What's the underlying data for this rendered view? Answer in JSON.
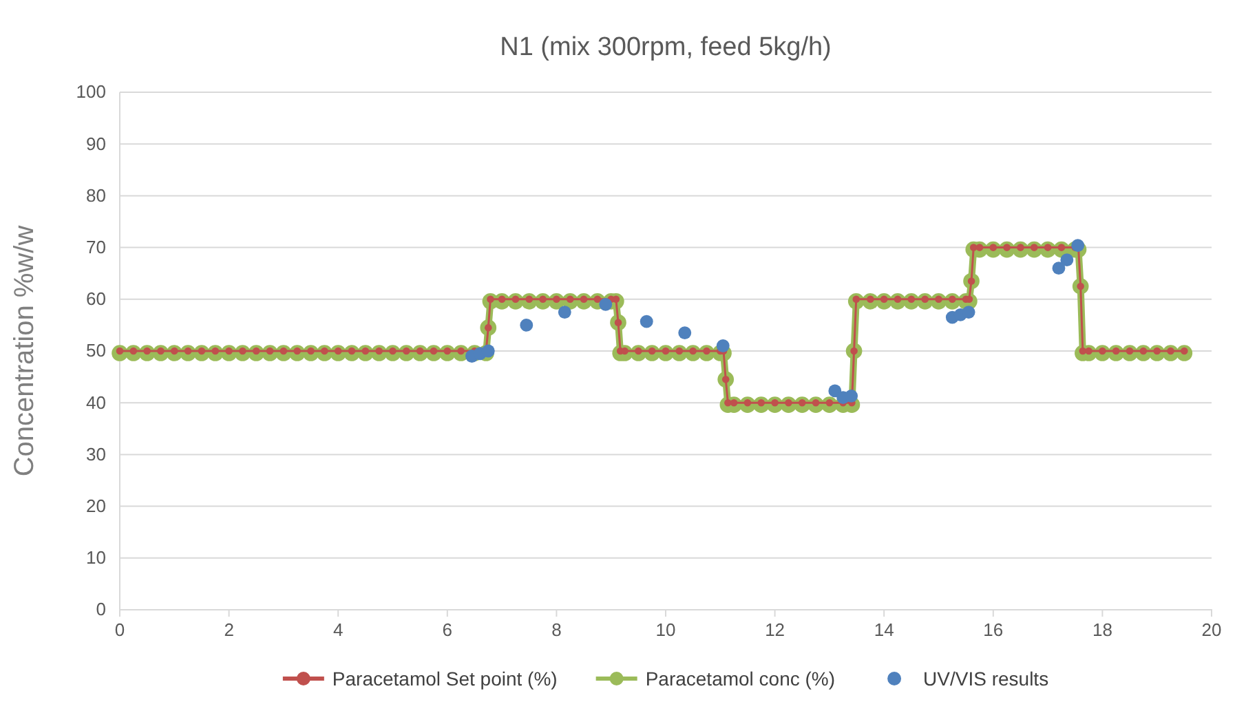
{
  "chart_data": {
    "type": "line",
    "title": "N1 (mix 300rpm, feed 5kg/h)",
    "ylabel": "Concentration %w/w",
    "x": [
      0,
      0.25,
      0.5,
      0.75,
      1,
      1.25,
      1.5,
      1.75,
      2,
      2.25,
      2.5,
      2.75,
      3,
      3.25,
      3.5,
      3.75,
      4,
      4.25,
      4.5,
      4.75,
      5,
      5.25,
      5.5,
      5.75,
      6,
      6.25,
      6.5,
      6.71,
      6.75,
      6.79,
      7,
      7.25,
      7.5,
      7.75,
      8,
      8.25,
      8.5,
      8.75,
      9,
      9.09,
      9.13,
      9.17,
      9.25,
      9.5,
      9.75,
      10,
      10.25,
      10.5,
      10.75,
      11,
      11.06,
      11.1,
      11.14,
      11.25,
      11.5,
      11.75,
      12,
      12.25,
      12.5,
      12.75,
      13,
      13.25,
      13.41,
      13.45,
      13.49,
      13.75,
      14,
      14.25,
      14.5,
      14.75,
      15,
      15.25,
      15.5,
      15.56,
      15.6,
      15.64,
      15.75,
      16,
      16.25,
      16.5,
      16.75,
      17,
      17.25,
      17.5,
      17.56,
      17.6,
      17.64,
      17.75,
      18,
      18.25,
      18.5,
      18.75,
      19,
      19.25,
      19.5
    ],
    "series": [
      {
        "name": "Paracetamol Set point (%)",
        "color": "#c0504d",
        "values": [
          50,
          50,
          50,
          50,
          50,
          50,
          50,
          50,
          50,
          50,
          50,
          50,
          50,
          50,
          50,
          50,
          50,
          50,
          50,
          50,
          50,
          50,
          50,
          50,
          50,
          50,
          50,
          50,
          54.5,
          60,
          60,
          60,
          60,
          60,
          60,
          60,
          60,
          60,
          60,
          60,
          55.5,
          50,
          50,
          50,
          50,
          50,
          50,
          50,
          50,
          50,
          50,
          44.5,
          40,
          40,
          40,
          40,
          40,
          40,
          40,
          40,
          40,
          40,
          40,
          50,
          60,
          60,
          60,
          60,
          60,
          60,
          60,
          60,
          60,
          60,
          63.5,
          70,
          70,
          70,
          70,
          70,
          70,
          70,
          70,
          70,
          70,
          62.5,
          50,
          50,
          50,
          50,
          50,
          50,
          50,
          50,
          50
        ]
      },
      {
        "name": "Paracetamol conc (%)",
        "color": "#9bbb59",
        "values": [
          49.6,
          49.6,
          49.6,
          49.6,
          49.6,
          49.6,
          49.6,
          49.6,
          49.6,
          49.6,
          49.6,
          49.6,
          49.6,
          49.6,
          49.6,
          49.6,
          49.6,
          49.6,
          49.6,
          49.6,
          49.6,
          49.6,
          49.6,
          49.6,
          49.6,
          49.6,
          49.6,
          49.6,
          54.5,
          59.6,
          59.6,
          59.6,
          59.6,
          59.6,
          59.6,
          59.6,
          59.6,
          59.6,
          59.6,
          59.6,
          55.5,
          49.6,
          49.6,
          49.6,
          49.6,
          49.6,
          49.6,
          49.6,
          49.6,
          49.6,
          49.6,
          44.5,
          39.6,
          39.6,
          39.6,
          39.6,
          39.6,
          39.6,
          39.6,
          39.6,
          39.6,
          39.6,
          39.6,
          50,
          59.6,
          59.6,
          59.6,
          59.6,
          59.6,
          59.6,
          59.6,
          59.6,
          59.6,
          59.6,
          63.5,
          69.6,
          69.6,
          69.6,
          69.6,
          69.6,
          69.6,
          69.6,
          69.6,
          69.6,
          69.6,
          62.5,
          49.6,
          49.6,
          49.6,
          49.6,
          49.6,
          49.6,
          49.6,
          49.6,
          49.6
        ]
      },
      {
        "name": "UV/VIS results",
        "type": "scatter",
        "color": "#4f81bd",
        "x": [
          6.45,
          6.6,
          6.75,
          7.45,
          8.15,
          8.9,
          9.65,
          10.35,
          11.05,
          13.1,
          13.25,
          13.4,
          15.25,
          15.4,
          15.55,
          17.2,
          17.35,
          17.55
        ],
        "values": [
          49,
          49.5,
          50,
          55,
          57.5,
          59,
          55.7,
          53.5,
          51,
          42.3,
          41,
          41.3,
          56.5,
          57,
          57.5,
          66,
          67.6,
          70.4
        ]
      }
    ],
    "xlim": [
      0,
      20
    ],
    "xticks": [
      0,
      2,
      4,
      6,
      8,
      10,
      12,
      14,
      16,
      18,
      20
    ],
    "ylim": [
      0,
      100
    ],
    "yticks": [
      0,
      10,
      20,
      30,
      40,
      50,
      60,
      70,
      80,
      90,
      100
    ],
    "grid": "y",
    "legend": "bottom",
    "marker": "circle",
    "line_style": "solid"
  }
}
